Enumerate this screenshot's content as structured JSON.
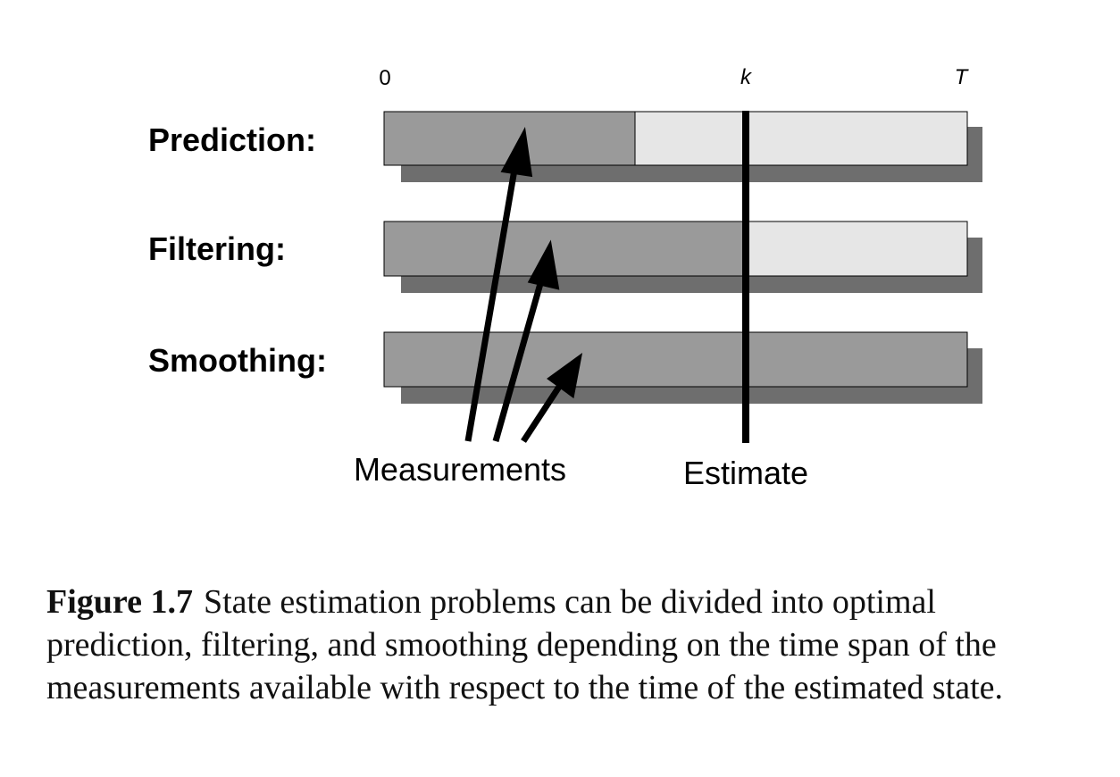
{
  "diagram": {
    "axis": {
      "start": "0",
      "now": "k",
      "end": "T"
    },
    "rows": [
      {
        "label": "Prediction:",
        "measured_until": 0.43
      },
      {
        "label": "Filtering:",
        "measured_until": 0.62
      },
      {
        "label": "Smoothing:",
        "measured_until": 1.0
      }
    ],
    "estimate_position": 0.62,
    "measurements_label": "Measurements",
    "estimate_label": "Estimate",
    "colors": {
      "measured": "#9a9a9a",
      "unmeasured": "#e6e6e6",
      "shadow": "#6e6e6e",
      "line": "#000000"
    }
  },
  "caption": {
    "label": "Figure 1.7",
    "text": "State estimation problems can be divided into optimal prediction, filtering, and smoothing depending on the time span of the measurements available with respect to the time of the estimated state."
  }
}
